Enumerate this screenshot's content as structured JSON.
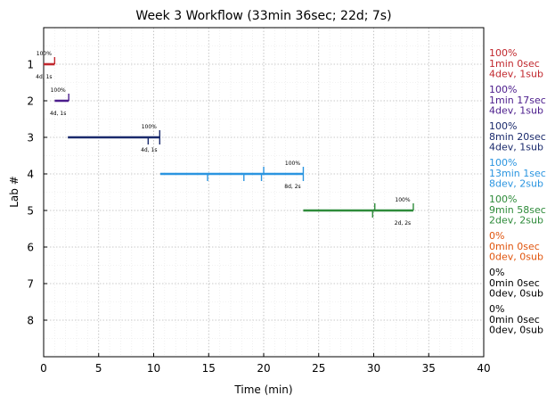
{
  "chart_data": {
    "type": "gantt-timeline",
    "title": "Week 3 Workflow (33min 36sec; 22d; 7s)",
    "xlabel": "Time (min)",
    "ylabel": "Lab #",
    "xlim": [
      0,
      40
    ],
    "ylim": [
      0,
      9
    ],
    "x_ticks": [
      0,
      5,
      10,
      15,
      20,
      25,
      30,
      35,
      40
    ],
    "y_ticks": [
      1,
      2,
      3,
      4,
      5,
      6,
      7,
      8
    ],
    "grid": true,
    "labs": [
      {
        "lab": 1,
        "color": "#c1272d",
        "start": 0.0,
        "end": 1.0,
        "marks_up": [
          1.0
        ],
        "marks_down": [],
        "pct_label": "100%",
        "dev_label": "4d, 1s",
        "side": [
          "100%",
          "1min 0sec",
          "4dev, 1sub"
        ]
      },
      {
        "lab": 2,
        "color": "#4b1c8c",
        "start": 1.0,
        "end": 2.28,
        "marks_up": [
          2.28
        ],
        "marks_down": [],
        "pct_label": "100%",
        "dev_label": "4d, 1s",
        "side": [
          "100%",
          "1min 17sec",
          "4dev, 1sub"
        ]
      },
      {
        "lab": 3,
        "color": "#1a2a6c",
        "start": 2.2,
        "end": 10.55,
        "marks_up": [
          10.55
        ],
        "marks_down": [
          9.5,
          10.55
        ],
        "pct_label": "100%",
        "dev_label": "4d, 1s",
        "side": [
          "100%",
          "8min 20sec",
          "4dev, 1sub"
        ]
      },
      {
        "lab": 4,
        "color": "#2b95e0",
        "start": 10.6,
        "end": 23.6,
        "marks_up": [
          20.0,
          23.6
        ],
        "marks_down": [
          14.9,
          18.2,
          19.8,
          23.6
        ],
        "pct_label": "100%",
        "dev_label": "8d, 2s",
        "side": [
          "100%",
          "13min 1sec",
          "8dev, 2sub"
        ]
      },
      {
        "lab": 5,
        "color": "#2e8b3a",
        "start": 23.6,
        "end": 33.6,
        "marks_up": [
          30.1,
          33.6
        ],
        "marks_down": [
          29.9
        ],
        "pct_label": "100%",
        "dev_label": "2d, 2s",
        "side": [
          "100%",
          "9min 58sec",
          "2dev, 2sub"
        ]
      },
      {
        "lab": 6,
        "color": "#e0550e",
        "side": [
          "0%",
          "0min 0sec",
          "0dev, 0sub"
        ]
      },
      {
        "lab": 7,
        "color": "#000000",
        "side": [
          "0%",
          "0min 0sec",
          "0dev, 0sub"
        ]
      },
      {
        "lab": 8,
        "color": "#000000",
        "side": [
          "0%",
          "0min 0sec",
          "0dev, 0sub"
        ]
      }
    ]
  }
}
